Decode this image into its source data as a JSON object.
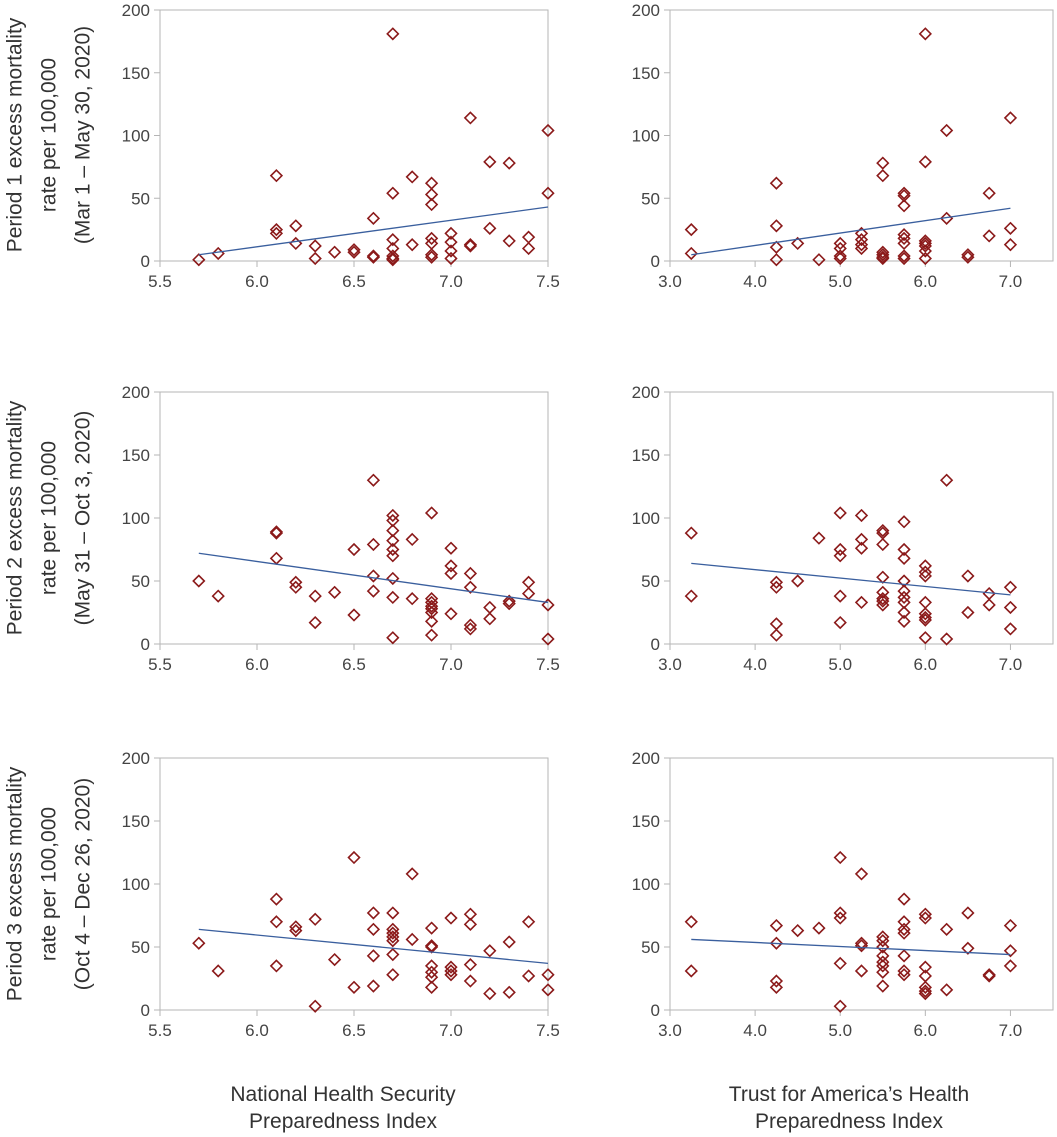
{
  "colors": {
    "marker": "#8b1a1a",
    "trend": "#3a5f9e",
    "axis": "#b5b5b5"
  },
  "row_labels": [
    {
      "lines": [
        "Period 1 excess mortality",
        "rate per 100,000",
        "(Mar 1 – May 30, 2020)"
      ]
    },
    {
      "lines": [
        "Period 2 excess mortality",
        "rate per 100,000",
        "(May 31 – Oct 3, 2020)"
      ]
    },
    {
      "lines": [
        "Period 3 excess mortality",
        "rate per 100,000",
        "(Oct 4 – Dec 26, 2020)"
      ]
    }
  ],
  "col_labels": [
    {
      "lines": [
        "National Health Security",
        "Preparedness Index"
      ]
    },
    {
      "lines": [
        "Trust for America’s Health",
        "Preparedness Index"
      ]
    }
  ],
  "chart_data": [
    {
      "type": "scatter",
      "id": "p1-nhspi",
      "xlim": [
        5.5,
        7.5
      ],
      "ylim": [
        0,
        200
      ],
      "xticks": [
        "5.5",
        "6.0",
        "6.5",
        "7.0",
        "7.5"
      ],
      "yticks": [
        "0",
        "50",
        "100",
        "150",
        "200"
      ],
      "trend": [
        [
          5.7,
          5
        ],
        [
          7.5,
          43
        ]
      ],
      "points": [
        [
          5.7,
          1
        ],
        [
          5.8,
          6
        ],
        [
          6.1,
          68
        ],
        [
          6.1,
          25
        ],
        [
          6.1,
          22
        ],
        [
          6.2,
          28
        ],
        [
          6.2,
          14
        ],
        [
          6.3,
          12
        ],
        [
          6.3,
          2
        ],
        [
          6.4,
          7
        ],
        [
          6.5,
          9
        ],
        [
          6.5,
          7
        ],
        [
          6.6,
          34
        ],
        [
          6.6,
          4
        ],
        [
          6.6,
          3
        ],
        [
          6.7,
          181
        ],
        [
          6.7,
          54
        ],
        [
          6.7,
          17
        ],
        [
          6.7,
          10
        ],
        [
          6.7,
          4
        ],
        [
          6.7,
          2
        ],
        [
          6.7,
          1
        ],
        [
          6.8,
          67
        ],
        [
          6.8,
          13
        ],
        [
          6.9,
          62
        ],
        [
          6.9,
          53
        ],
        [
          6.9,
          45
        ],
        [
          6.9,
          18
        ],
        [
          6.9,
          14
        ],
        [
          6.9,
          5
        ],
        [
          6.9,
          3
        ],
        [
          7.0,
          22
        ],
        [
          7.0,
          15
        ],
        [
          7.0,
          8
        ],
        [
          7.0,
          2
        ],
        [
          7.1,
          114
        ],
        [
          7.1,
          13
        ],
        [
          7.1,
          12
        ],
        [
          7.2,
          79
        ],
        [
          7.2,
          26
        ],
        [
          7.3,
          78
        ],
        [
          7.3,
          16
        ],
        [
          7.4,
          19
        ],
        [
          7.4,
          10
        ],
        [
          7.5,
          104
        ],
        [
          7.5,
          54
        ]
      ]
    },
    {
      "type": "scatter",
      "id": "p1-tfah",
      "xlim": [
        3.0,
        7.5
      ],
      "ylim": [
        0,
        200
      ],
      "xticks": [
        "3.0",
        "4.0",
        "5.0",
        "6.0",
        "7.0"
      ],
      "yticks": [
        "0",
        "50",
        "100",
        "150",
        "200"
      ],
      "trend": [
        [
          3.25,
          5
        ],
        [
          7.0,
          42
        ]
      ],
      "points": [
        [
          3.25,
          25
        ],
        [
          3.25,
          6
        ],
        [
          4.25,
          62
        ],
        [
          4.25,
          28
        ],
        [
          4.25,
          11
        ],
        [
          4.25,
          1
        ],
        [
          4.5,
          14
        ],
        [
          4.75,
          1
        ],
        [
          5.0,
          14
        ],
        [
          5.0,
          10
        ],
        [
          5.0,
          4
        ],
        [
          5.0,
          2
        ],
        [
          5.25,
          22
        ],
        [
          5.25,
          17
        ],
        [
          5.25,
          13
        ],
        [
          5.25,
          10
        ],
        [
          5.5,
          78
        ],
        [
          5.5,
          68
        ],
        [
          5.5,
          7
        ],
        [
          5.5,
          5
        ],
        [
          5.5,
          3
        ],
        [
          5.5,
          2
        ],
        [
          5.75,
          54
        ],
        [
          5.75,
          52
        ],
        [
          5.75,
          44
        ],
        [
          5.75,
          21
        ],
        [
          5.75,
          18
        ],
        [
          5.75,
          14
        ],
        [
          5.75,
          4
        ],
        [
          5.75,
          2
        ],
        [
          6.0,
          181
        ],
        [
          6.0,
          79
        ],
        [
          6.0,
          16
        ],
        [
          6.0,
          14
        ],
        [
          6.0,
          12
        ],
        [
          6.0,
          8
        ],
        [
          6.0,
          2
        ],
        [
          6.25,
          104
        ],
        [
          6.25,
          34
        ],
        [
          6.5,
          5
        ],
        [
          6.5,
          3
        ],
        [
          6.75,
          54
        ],
        [
          6.75,
          20
        ],
        [
          7.0,
          114
        ],
        [
          7.0,
          26
        ],
        [
          7.0,
          13
        ]
      ]
    },
    {
      "type": "scatter",
      "id": "p2-nhspi",
      "xlim": [
        5.5,
        7.5
      ],
      "ylim": [
        0,
        200
      ],
      "xticks": [
        "5.5",
        "6.0",
        "6.5",
        "7.0",
        "7.5"
      ],
      "yticks": [
        "0",
        "50",
        "100",
        "150",
        "200"
      ],
      "trend": [
        [
          5.7,
          72
        ],
        [
          7.5,
          33
        ]
      ],
      "points": [
        [
          5.7,
          50
        ],
        [
          5.8,
          38
        ],
        [
          6.1,
          89
        ],
        [
          6.1,
          88
        ],
        [
          6.1,
          68
        ],
        [
          6.2,
          49
        ],
        [
          6.2,
          45
        ],
        [
          6.3,
          38
        ],
        [
          6.3,
          17
        ],
        [
          6.4,
          41
        ],
        [
          6.5,
          75
        ],
        [
          6.5,
          23
        ],
        [
          6.6,
          130
        ],
        [
          6.6,
          79
        ],
        [
          6.6,
          54
        ],
        [
          6.6,
          42
        ],
        [
          6.7,
          102
        ],
        [
          6.7,
          98
        ],
        [
          6.7,
          90
        ],
        [
          6.7,
          82
        ],
        [
          6.7,
          75
        ],
        [
          6.7,
          70
        ],
        [
          6.7,
          52
        ],
        [
          6.7,
          37
        ],
        [
          6.7,
          5
        ],
        [
          6.8,
          83
        ],
        [
          6.8,
          36
        ],
        [
          6.9,
          104
        ],
        [
          6.9,
          36
        ],
        [
          6.9,
          33
        ],
        [
          6.9,
          30
        ],
        [
          6.9,
          28
        ],
        [
          6.9,
          25
        ],
        [
          6.9,
          18
        ],
        [
          6.9,
          7
        ],
        [
          7.0,
          76
        ],
        [
          7.0,
          62
        ],
        [
          7.0,
          56
        ],
        [
          7.0,
          24
        ],
        [
          7.1,
          56
        ],
        [
          7.1,
          45
        ],
        [
          7.1,
          15
        ],
        [
          7.1,
          12
        ],
        [
          7.2,
          29
        ],
        [
          7.2,
          20
        ],
        [
          7.3,
          34
        ],
        [
          7.3,
          32
        ],
        [
          7.4,
          49
        ],
        [
          7.4,
          40
        ],
        [
          7.5,
          31
        ],
        [
          7.5,
          4
        ]
      ]
    },
    {
      "type": "scatter",
      "id": "p2-tfah",
      "xlim": [
        3.0,
        7.5
      ],
      "ylim": [
        0,
        200
      ],
      "xticks": [
        "3.0",
        "4.0",
        "5.0",
        "6.0",
        "7.0"
      ],
      "yticks": [
        "0",
        "50",
        "100",
        "150",
        "200"
      ],
      "trend": [
        [
          3.25,
          64
        ],
        [
          7.0,
          39
        ]
      ],
      "points": [
        [
          3.25,
          88
        ],
        [
          3.25,
          38
        ],
        [
          4.25,
          49
        ],
        [
          4.25,
          45
        ],
        [
          4.25,
          16
        ],
        [
          4.25,
          7
        ],
        [
          4.5,
          50
        ],
        [
          4.75,
          84
        ],
        [
          5.0,
          104
        ],
        [
          5.0,
          75
        ],
        [
          5.0,
          70
        ],
        [
          5.0,
          38
        ],
        [
          5.0,
          17
        ],
        [
          5.25,
          102
        ],
        [
          5.25,
          83
        ],
        [
          5.25,
          76
        ],
        [
          5.25,
          33
        ],
        [
          5.5,
          90
        ],
        [
          5.5,
          88
        ],
        [
          5.5,
          79
        ],
        [
          5.5,
          53
        ],
        [
          5.5,
          41
        ],
        [
          5.5,
          36
        ],
        [
          5.5,
          34
        ],
        [
          5.5,
          31
        ],
        [
          5.75,
          97
        ],
        [
          5.75,
          75
        ],
        [
          5.75,
          68
        ],
        [
          5.75,
          50
        ],
        [
          5.75,
          42
        ],
        [
          5.75,
          37
        ],
        [
          5.75,
          33
        ],
        [
          5.75,
          25
        ],
        [
          5.75,
          18
        ],
        [
          6.0,
          62
        ],
        [
          6.0,
          57
        ],
        [
          6.0,
          54
        ],
        [
          6.0,
          33
        ],
        [
          6.0,
          24
        ],
        [
          6.0,
          21
        ],
        [
          6.0,
          19
        ],
        [
          6.0,
          5
        ],
        [
          6.25,
          130
        ],
        [
          6.25,
          4
        ],
        [
          6.5,
          54
        ],
        [
          6.5,
          25
        ],
        [
          6.75,
          40
        ],
        [
          6.75,
          31
        ],
        [
          7.0,
          45
        ],
        [
          7.0,
          29
        ],
        [
          7.0,
          12
        ]
      ]
    },
    {
      "type": "scatter",
      "id": "p3-nhspi",
      "xlim": [
        5.5,
        7.5
      ],
      "ylim": [
        0,
        200
      ],
      "xticks": [
        "5.5",
        "6.0",
        "6.5",
        "7.0",
        "7.5"
      ],
      "yticks": [
        "0",
        "50",
        "100",
        "150",
        "200"
      ],
      "trend": [
        [
          5.7,
          64
        ],
        [
          7.5,
          37
        ]
      ],
      "points": [
        [
          5.7,
          53
        ],
        [
          5.8,
          31
        ],
        [
          6.1,
          88
        ],
        [
          6.1,
          70
        ],
        [
          6.1,
          35
        ],
        [
          6.2,
          66
        ],
        [
          6.2,
          63
        ],
        [
          6.3,
          72
        ],
        [
          6.3,
          3
        ],
        [
          6.4,
          40
        ],
        [
          6.5,
          121
        ],
        [
          6.5,
          18
        ],
        [
          6.6,
          77
        ],
        [
          6.6,
          64
        ],
        [
          6.6,
          43
        ],
        [
          6.6,
          19
        ],
        [
          6.7,
          77
        ],
        [
          6.7,
          64
        ],
        [
          6.7,
          61
        ],
        [
          6.7,
          58
        ],
        [
          6.7,
          55
        ],
        [
          6.7,
          44
        ],
        [
          6.7,
          28
        ],
        [
          6.8,
          108
        ],
        [
          6.8,
          56
        ],
        [
          6.9,
          65
        ],
        [
          6.9,
          51
        ],
        [
          6.9,
          50
        ],
        [
          6.9,
          35
        ],
        [
          6.9,
          30
        ],
        [
          6.9,
          26
        ],
        [
          6.9,
          18
        ],
        [
          7.0,
          73
        ],
        [
          7.0,
          34
        ],
        [
          7.0,
          31
        ],
        [
          7.0,
          28
        ],
        [
          7.1,
          76
        ],
        [
          7.1,
          68
        ],
        [
          7.1,
          36
        ],
        [
          7.1,
          23
        ],
        [
          7.2,
          47
        ],
        [
          7.2,
          13
        ],
        [
          7.3,
          54
        ],
        [
          7.3,
          14
        ],
        [
          7.4,
          70
        ],
        [
          7.4,
          27
        ],
        [
          7.5,
          28
        ],
        [
          7.5,
          16
        ]
      ]
    },
    {
      "type": "scatter",
      "id": "p3-tfah",
      "xlim": [
        3.0,
        7.5
      ],
      "ylim": [
        0,
        200
      ],
      "xticks": [
        "3.0",
        "4.0",
        "5.0",
        "6.0",
        "7.0"
      ],
      "yticks": [
        "0",
        "50",
        "100",
        "150",
        "200"
      ],
      "trend": [
        [
          3.25,
          56
        ],
        [
          7.0,
          44
        ]
      ],
      "points": [
        [
          3.25,
          70
        ],
        [
          3.25,
          31
        ],
        [
          4.25,
          67
        ],
        [
          4.25,
          53
        ],
        [
          4.25,
          23
        ],
        [
          4.25,
          18
        ],
        [
          4.5,
          63
        ],
        [
          4.75,
          65
        ],
        [
          5.0,
          121
        ],
        [
          5.0,
          77
        ],
        [
          5.0,
          73
        ],
        [
          5.0,
          37
        ],
        [
          5.0,
          3
        ],
        [
          5.25,
          108
        ],
        [
          5.25,
          53
        ],
        [
          5.25,
          51
        ],
        [
          5.25,
          31
        ],
        [
          5.5,
          58
        ],
        [
          5.5,
          55
        ],
        [
          5.5,
          50
        ],
        [
          5.5,
          43
        ],
        [
          5.5,
          38
        ],
        [
          5.5,
          35
        ],
        [
          5.5,
          30
        ],
        [
          5.5,
          19
        ],
        [
          5.75,
          88
        ],
        [
          5.75,
          70
        ],
        [
          5.75,
          64
        ],
        [
          5.75,
          61
        ],
        [
          5.75,
          43
        ],
        [
          5.75,
          31
        ],
        [
          5.75,
          28
        ],
        [
          6.0,
          76
        ],
        [
          6.0,
          73
        ],
        [
          6.0,
          34
        ],
        [
          6.0,
          27
        ],
        [
          6.0,
          18
        ],
        [
          6.0,
          15
        ],
        [
          6.0,
          13
        ],
        [
          6.25,
          64
        ],
        [
          6.25,
          16
        ],
        [
          6.5,
          77
        ],
        [
          6.5,
          49
        ],
        [
          6.75,
          28
        ],
        [
          6.75,
          27
        ],
        [
          7.0,
          67
        ],
        [
          7.0,
          47
        ],
        [
          7.0,
          35
        ]
      ]
    }
  ]
}
